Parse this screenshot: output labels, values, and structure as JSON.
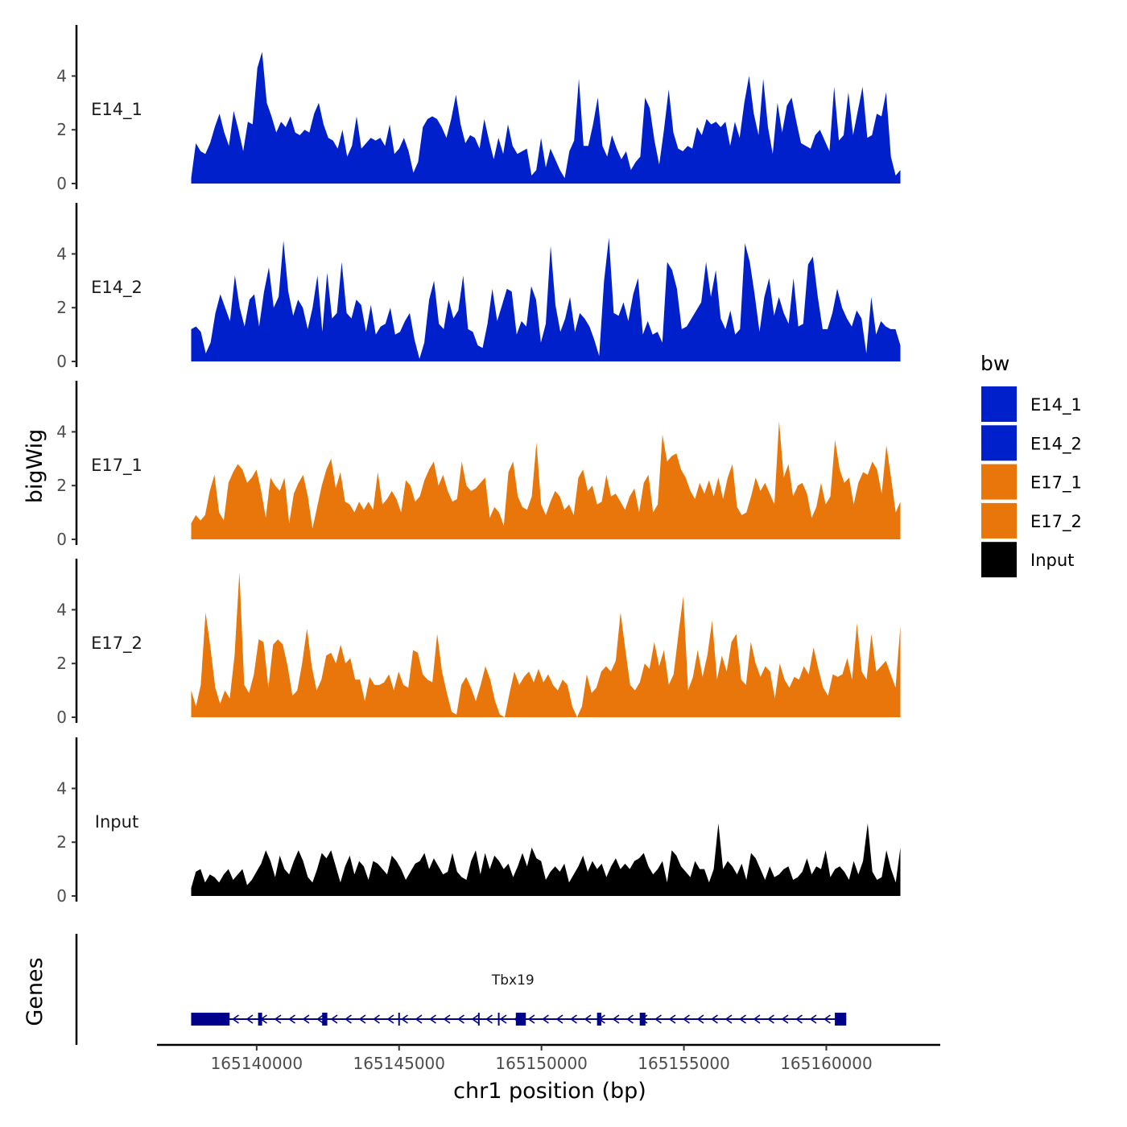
{
  "chart_data": {
    "type": "area",
    "title": "",
    "ylabel": "bigWig",
    "xlabel": "chr1 position (bp)",
    "chromosome": "chr1",
    "xlim": [
      165136500,
      165164000
    ],
    "ylim": [
      0,
      5.9
    ],
    "yticks": [
      0,
      2,
      4
    ],
    "xticks": [
      165140000,
      165145000,
      165150000,
      165155000,
      165160000
    ],
    "xtick_labels": [
      "165140000",
      "165145000",
      "165150000",
      "165155000",
      "165160000"
    ],
    "x_start": 165137700,
    "x_end": 165162600,
    "legend": {
      "title": "bw",
      "position": "right",
      "entries": [
        {
          "name": "E14_1",
          "color": "#0020CC"
        },
        {
          "name": "E14_2",
          "color": "#0020CC"
        },
        {
          "name": "E17_1",
          "color": "#E8760A"
        },
        {
          "name": "E17_2",
          "color": "#E8760A"
        },
        {
          "name": "Input",
          "color": "#000000"
        }
      ]
    },
    "series": [
      {
        "name": "E14_1",
        "label": "E14_1",
        "color": "#0020CC",
        "values": [
          0.2,
          1.5,
          1.2,
          1.1,
          1.5,
          2.1,
          2.6,
          1.9,
          1.4,
          2.7,
          2.0,
          1.2,
          2.3,
          2.2,
          4.3,
          4.9,
          3.0,
          2.5,
          1.9,
          2.3,
          2.1,
          2.5,
          1.9,
          1.8,
          2.0,
          1.9,
          2.6,
          3.0,
          2.2,
          1.7,
          1.6,
          1.3,
          2.0,
          1.0,
          1.4,
          2.5,
          1.3,
          1.5,
          1.7,
          1.6,
          1.7,
          1.4,
          2.2,
          1.1,
          1.3,
          1.7,
          1.2,
          0.4,
          0.8,
          2.1,
          2.4,
          2.5,
          2.4,
          2.1,
          1.7,
          2.4,
          3.3,
          2.2,
          1.5,
          1.8,
          1.7,
          1.3,
          2.4,
          1.6,
          0.9,
          1.7,
          1.1,
          2.2,
          1.4,
          1.1,
          1.2,
          1.3,
          0.3,
          0.5,
          1.7,
          0.6,
          1.3,
          0.9,
          0.5,
          0.2,
          1.2,
          1.6,
          3.9,
          1.4,
          1.4,
          2.2,
          3.2,
          1.4,
          1.0,
          1.8,
          1.3,
          0.9,
          1.2,
          0.5,
          0.8,
          1.0,
          3.2,
          2.8,
          1.6,
          0.7,
          2.0,
          3.5,
          1.9,
          1.3,
          1.2,
          1.4,
          1.3,
          2.1,
          1.8,
          2.4,
          2.2,
          2.3,
          2.1,
          2.3,
          1.4,
          2.3,
          1.7,
          3.0,
          4.0,
          2.6,
          1.8,
          3.9,
          2.1,
          1.1,
          3.0,
          1.9,
          2.9,
          3.2,
          2.3,
          1.5,
          1.4,
          1.3,
          1.8,
          2.0,
          1.6,
          1.2,
          3.6,
          1.6,
          1.8,
          3.4,
          1.8,
          2.7,
          3.6,
          1.7,
          1.8,
          2.6,
          2.5,
          3.4,
          1.0,
          0.3,
          0.5
        ]
      },
      {
        "name": "E14_2",
        "label": "E14_2",
        "color": "#0020CC",
        "values": [
          1.2,
          1.3,
          1.1,
          0.3,
          0.7,
          1.8,
          2.5,
          2.0,
          1.5,
          3.2,
          2.0,
          1.3,
          2.3,
          2.5,
          1.3,
          2.6,
          3.5,
          2.0,
          2.4,
          4.5,
          2.6,
          1.7,
          2.3,
          2.0,
          1.2,
          2.0,
          3.2,
          1.1,
          3.3,
          1.6,
          1.8,
          3.7,
          1.8,
          1.6,
          2.3,
          2.1,
          1.1,
          2.1,
          1.0,
          1.3,
          1.4,
          2.0,
          1.0,
          1.1,
          1.5,
          1.8,
          0.8,
          0.1,
          0.7,
          2.3,
          3.0,
          1.4,
          1.2,
          2.3,
          1.6,
          1.9,
          3.2,
          1.2,
          1.1,
          0.6,
          0.5,
          1.4,
          2.7,
          1.5,
          2.1,
          2.7,
          2.6,
          1.0,
          1.5,
          1.3,
          2.8,
          2.3,
          0.7,
          1.4,
          4.3,
          2.1,
          1.1,
          1.6,
          2.4,
          1.1,
          1.8,
          1.6,
          1.3,
          0.8,
          0.2,
          3.0,
          4.6,
          1.8,
          1.7,
          2.2,
          1.5,
          2.5,
          3.1,
          1.0,
          1.5,
          1.0,
          1.1,
          0.7,
          3.7,
          3.4,
          2.7,
          1.2,
          1.3,
          1.6,
          1.9,
          2.2,
          3.7,
          2.4,
          3.4,
          1.6,
          1.2,
          1.9,
          1.0,
          1.2,
          4.4,
          3.7,
          2.5,
          1.1,
          2.4,
          3.1,
          1.7,
          2.4,
          1.8,
          1.4,
          3.1,
          1.3,
          1.4,
          3.6,
          3.9,
          2.4,
          1.2,
          1.2,
          1.8,
          2.7,
          2.0,
          1.6,
          1.3,
          1.9,
          1.6,
          0.3,
          2.4,
          1.0,
          1.5,
          1.3,
          1.2,
          1.2,
          0.6
        ]
      },
      {
        "name": "E17_1",
        "label": "E17_1",
        "color": "#E8760A",
        "values": [
          0.6,
          0.9,
          0.7,
          0.9,
          1.8,
          2.4,
          1.0,
          0.7,
          2.1,
          2.5,
          2.8,
          2.6,
          2.1,
          2.3,
          2.6,
          1.8,
          0.8,
          2.3,
          2.0,
          1.8,
          2.3,
          0.6,
          1.7,
          2.1,
          2.4,
          1.6,
          0.4,
          1.2,
          2.0,
          2.6,
          3.0,
          1.9,
          2.5,
          1.4,
          1.3,
          1.0,
          1.4,
          1.1,
          1.4,
          1.1,
          2.5,
          1.3,
          1.5,
          1.8,
          1.5,
          1.0,
          2.2,
          2.0,
          1.4,
          1.6,
          2.2,
          2.6,
          2.9,
          2.0,
          2.4,
          1.8,
          1.4,
          1.5,
          2.9,
          2.0,
          1.8,
          1.9,
          2.1,
          2.3,
          0.8,
          1.2,
          1.0,
          0.5,
          2.5,
          2.9,
          1.6,
          1.2,
          1.1,
          1.6,
          3.6,
          1.3,
          0.9,
          1.4,
          1.8,
          1.6,
          1.1,
          1.3,
          0.9,
          2.3,
          2.6,
          1.8,
          2.0,
          1.3,
          1.4,
          2.4,
          1.6,
          1.7,
          1.4,
          1.1,
          1.6,
          1.9,
          1.0,
          2.1,
          2.4,
          1.0,
          1.3,
          3.9,
          2.9,
          3.1,
          3.2,
          2.6,
          2.3,
          1.8,
          1.5,
          2.1,
          1.7,
          2.2,
          1.6,
          2.3,
          1.5,
          2.3,
          2.8,
          1.2,
          0.9,
          1.0,
          1.6,
          2.3,
          1.8,
          2.1,
          1.7,
          1.3,
          4.4,
          2.3,
          2.8,
          1.6,
          2.0,
          2.1,
          1.7,
          0.8,
          1.2,
          2.1,
          1.3,
          1.6,
          3.7,
          2.6,
          2.1,
          2.3,
          1.3,
          2.1,
          2.5,
          2.4,
          2.9,
          2.6,
          1.7,
          3.5,
          2.3,
          1.0,
          1.4
        ]
      },
      {
        "name": "E17_2",
        "label": "E17_2",
        "color": "#E8760A",
        "values": [
          1.0,
          0.4,
          1.2,
          3.9,
          2.6,
          1.1,
          0.5,
          1.0,
          0.7,
          2.3,
          5.4,
          1.2,
          0.9,
          1.6,
          2.9,
          2.8,
          1.1,
          2.7,
          2.9,
          2.7,
          1.9,
          0.8,
          1.0,
          2.0,
          3.3,
          1.9,
          1.0,
          1.4,
          2.3,
          2.4,
          2.0,
          2.7,
          2.0,
          2.2,
          1.4,
          1.4,
          0.6,
          1.5,
          1.2,
          1.2,
          1.3,
          1.6,
          1.0,
          1.7,
          1.2,
          1.1,
          2.5,
          2.4,
          1.6,
          1.4,
          1.3,
          3.1,
          1.7,
          0.9,
          0.2,
          0.1,
          1.2,
          1.5,
          1.1,
          0.6,
          1.2,
          1.9,
          1.4,
          0.6,
          0.1,
          0.0,
          0.9,
          1.7,
          1.2,
          1.5,
          1.7,
          1.3,
          1.8,
          1.3,
          1.6,
          1.2,
          1.0,
          1.4,
          1.2,
          0.4,
          0.0,
          0.4,
          1.6,
          0.9,
          1.1,
          1.7,
          1.9,
          1.7,
          2.1,
          3.9,
          2.5,
          1.2,
          1.0,
          1.3,
          2.0,
          1.8,
          2.8,
          1.9,
          2.5,
          1.2,
          1.6,
          3.1,
          4.5,
          1.0,
          1.5,
          2.5,
          1.5,
          2.3,
          3.6,
          1.4,
          2.3,
          1.7,
          2.8,
          3.1,
          1.4,
          1.2,
          2.8,
          2.0,
          1.5,
          1.9,
          1.7,
          0.7,
          2.0,
          1.4,
          1.1,
          1.5,
          1.4,
          1.9,
          1.6,
          2.6,
          1.8,
          1.1,
          0.8,
          1.6,
          1.5,
          1.6,
          2.2,
          1.4,
          3.5,
          1.7,
          1.4,
          3.1,
          1.7,
          1.9,
          2.1,
          1.6,
          1.1,
          3.4
        ]
      },
      {
        "name": "Input",
        "label": "Input",
        "color": "#000000",
        "values": [
          0.3,
          0.9,
          1.0,
          0.5,
          0.8,
          0.7,
          0.5,
          0.8,
          1.0,
          0.6,
          0.8,
          1.0,
          0.4,
          0.6,
          0.9,
          1.2,
          1.7,
          1.3,
          0.7,
          1.5,
          1.0,
          0.8,
          1.3,
          1.7,
          1.3,
          0.7,
          0.5,
          1.0,
          1.6,
          1.4,
          1.7,
          1.1,
          0.5,
          1.1,
          1.5,
          0.8,
          1.3,
          1.1,
          0.6,
          1.3,
          1.2,
          1.0,
          0.8,
          1.5,
          1.3,
          1.0,
          0.6,
          0.9,
          1.2,
          1.3,
          1.6,
          1.0,
          1.4,
          1.1,
          0.8,
          0.9,
          1.6,
          0.9,
          0.7,
          0.6,
          1.3,
          1.7,
          0.8,
          1.6,
          1.0,
          1.5,
          1.3,
          1.0,
          1.2,
          0.7,
          1.1,
          1.6,
          1.1,
          1.8,
          1.4,
          1.3,
          0.6,
          0.9,
          1.1,
          0.9,
          1.2,
          0.5,
          0.8,
          1.1,
          1.5,
          0.9,
          1.3,
          1.0,
          1.2,
          0.7,
          1.1,
          1.4,
          1.0,
          1.2,
          1.0,
          1.3,
          1.4,
          1.6,
          1.1,
          0.8,
          1.0,
          1.3,
          0.5,
          1.7,
          1.5,
          1.1,
          0.9,
          0.7,
          1.3,
          1.0,
          1.0,
          0.5,
          1.0,
          2.7,
          1.0,
          1.3,
          1.1,
          0.8,
          1.2,
          0.6,
          1.6,
          1.4,
          1.0,
          0.6,
          1.1,
          0.7,
          0.8,
          1.0,
          1.1,
          0.6,
          0.7,
          0.9,
          1.4,
          0.8,
          1.1,
          1.0,
          1.7,
          0.7,
          1.0,
          1.1,
          0.9,
          0.6,
          1.3,
          0.8,
          1.3,
          2.7,
          0.9,
          0.6,
          0.7,
          1.7,
          1.0,
          0.5,
          1.8
        ]
      }
    ],
    "genes": {
      "label": "Genes",
      "color": "#00008B",
      "strand": "-",
      "transcripts": [
        {
          "name": "Tbx19",
          "start": 165137700,
          "end": 165160700,
          "exons": [
            [
              165137700,
              165139050
            ],
            [
              165140050,
              165140180
            ],
            [
              165142300,
              165142480
            ],
            [
              165149100,
              165149450
            ],
            [
              165151950,
              165152100
            ],
            [
              165153450,
              165153650
            ],
            [
              165160300,
              165160700
            ]
          ]
        }
      ]
    }
  }
}
